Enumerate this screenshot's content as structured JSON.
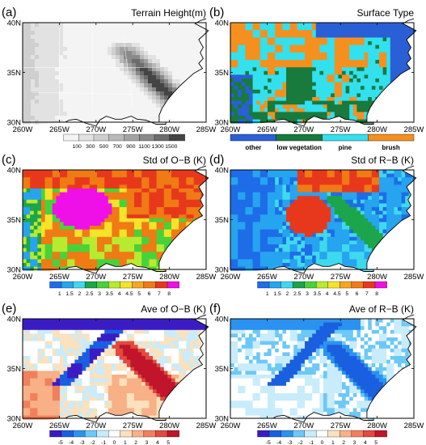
{
  "figure": {
    "x_ticks": [
      "260W",
      "265W",
      "270W",
      "275W",
      "280W",
      "285W"
    ],
    "y_ticks": [
      "30N",
      "35N",
      "40N"
    ]
  },
  "colors": {
    "land_base": "#ececec",
    "terrain_scale": [
      "#f4f4f4",
      "#e2e2e2",
      "#cfcfcf",
      "#b9b9b9",
      "#a2a2a2",
      "#8a8a8a",
      "#6c6c6c",
      "#444444"
    ],
    "surface_types": [
      "#2a5fd6",
      "#187a3c",
      "#33e0ee",
      "#f5901f"
    ],
    "std_scale": [
      "#1e6ce8",
      "#26a4ef",
      "#3fd9ee",
      "#1ca54a",
      "#48d23a",
      "#b8ea30",
      "#f5e32a",
      "#f5a623",
      "#f07a14",
      "#e8381c",
      "#ee10e6"
    ],
    "ave_scale": [
      "#3b1cc4",
      "#1a5fe0",
      "#2a92f0",
      "#6cc8f8",
      "#c8ecfb",
      "#ffffff",
      "#fbe1bd",
      "#f8b086",
      "#f0805d",
      "#e14a3d",
      "#c0152a"
    ]
  },
  "panels": [
    {
      "label": "(a)",
      "title": "Terrain Height(m)"
    },
    {
      "label": "(b)",
      "title": "Surface Type"
    },
    {
      "label": "(c)",
      "title": "Std of O−B (K)"
    },
    {
      "label": "(d)",
      "title": "Std of R−B (K)"
    },
    {
      "label": "(e)",
      "title": "Ave of O−B (K)"
    },
    {
      "label": "(f)",
      "title": "Ave of R−B (K)"
    }
  ],
  "chart_data": [
    {
      "type": "heatmap",
      "panel": "(a)",
      "title": "Terrain Height(m)",
      "x_ticks": [
        "260W",
        "265W",
        "270W",
        "275W",
        "280W",
        "285W"
      ],
      "y_ticks": [
        "30N",
        "35N",
        "40N"
      ],
      "colorbar_ticks": [
        "100",
        "300",
        "500",
        "700",
        "900",
        "1100",
        "1300",
        "1500"
      ]
    },
    {
      "type": "heatmap",
      "panel": "(b)",
      "title": "Surface Type",
      "x_ticks": [
        "260W",
        "265W",
        "270W",
        "275W",
        "280W",
        "285W"
      ],
      "y_ticks": [
        "30N",
        "35N",
        "40N"
      ],
      "categories": [
        "other",
        "low vegetation",
        "pine",
        "brush"
      ]
    },
    {
      "type": "heatmap",
      "panel": "(c)",
      "title": "Std of O−B (K)",
      "x_ticks": [
        "260W",
        "265W",
        "270W",
        "275W",
        "280W",
        "285W"
      ],
      "y_ticks": [
        "30N",
        "35N",
        "40N"
      ],
      "colorbar_ticks": [
        "1",
        "1.5",
        "2",
        "2.5",
        "3",
        "3.5",
        "4",
        "4.5",
        "5",
        "6",
        "7",
        "8"
      ]
    },
    {
      "type": "heatmap",
      "panel": "(d)",
      "title": "Std of R−B (K)",
      "x_ticks": [
        "260W",
        "265W",
        "270W",
        "275W",
        "280W",
        "285W"
      ],
      "y_ticks": [
        "30N",
        "35N",
        "40N"
      ],
      "colorbar_ticks": [
        "1",
        "1.5",
        "2",
        "2.5",
        "3",
        "3.5",
        "4",
        "4.5",
        "5",
        "6",
        "7",
        "8"
      ]
    },
    {
      "type": "heatmap",
      "panel": "(e)",
      "title": "Ave of O−B (K)",
      "x_ticks": [
        "260W",
        "265W",
        "270W",
        "275W",
        "280W",
        "285W"
      ],
      "y_ticks": [
        "30N",
        "35N",
        "40N"
      ],
      "colorbar_ticks": [
        "-5",
        "-4",
        "-3",
        "-2",
        "-1",
        "0",
        "1",
        "2",
        "3",
        "4",
        "5"
      ]
    },
    {
      "type": "heatmap",
      "panel": "(f)",
      "title": "Ave of R−B (K)",
      "x_ticks": [
        "260W",
        "265W",
        "270W",
        "275W",
        "280W",
        "285W"
      ],
      "y_ticks": [
        "30N",
        "35N",
        "40N"
      ],
      "colorbar_ticks": [
        "-5",
        "-4",
        "-3",
        "-2",
        "-1",
        "0",
        "1",
        "2",
        "3",
        "4",
        "5"
      ]
    }
  ]
}
